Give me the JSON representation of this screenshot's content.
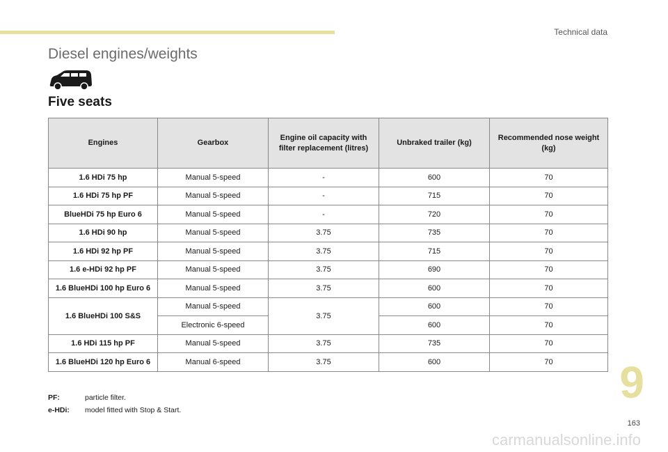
{
  "header": {
    "section_label": "Technical data",
    "accent_color": "#e6df9e"
  },
  "page_title": "Diesel engines/weights",
  "icon": "van-icon",
  "subtitle": "Five seats",
  "table": {
    "columns": [
      "Engines",
      "Gearbox",
      "Engine oil capacity with filter replacement (litres)",
      "Unbraked trailer (kg)",
      "Recommended nose weight (kg)"
    ],
    "rows": [
      [
        "1.6 HDi 75 hp",
        "Manual 5-speed",
        "-",
        "600",
        "70"
      ],
      [
        "1.6 HDi 75 hp PF",
        "Manual 5-speed",
        "-",
        "715",
        "70"
      ],
      [
        "BlueHDi 75 hp Euro 6",
        "Manual 5-speed",
        "-",
        "720",
        "70"
      ],
      [
        "1.6 HDi 90 hp",
        "Manual 5-speed",
        "3.75",
        "735",
        "70"
      ],
      [
        "1.6 HDi 92 hp PF",
        "Manual 5-speed",
        "3.75",
        "715",
        "70"
      ],
      [
        "1.6 e-HDi 92 hp PF",
        "Manual 5-speed",
        "3.75",
        "690",
        "70"
      ],
      [
        "1.6 BlueHDi 100 hp Euro 6",
        "Manual 5-speed",
        "3.75",
        "600",
        "70"
      ],
      [
        "1.6 BlueHDi 100 S&S",
        "Manual 5-speed",
        "3.75",
        "600",
        "70"
      ],
      [
        "",
        "Electronic 6-speed",
        "",
        "600",
        "70"
      ],
      [
        "1.6 HDi 115 hp PF",
        "Manual 5-speed",
        "3.75",
        "735",
        "70"
      ],
      [
        "1.6 BlueHDi 120 hp Euro 6",
        "Manual 6-speed",
        "3.75",
        "600",
        "70"
      ]
    ]
  },
  "footnotes": [
    {
      "key": "PF:",
      "text": "particle filter."
    },
    {
      "key": "e-HDi:",
      "text": "model fitted with Stop & Start."
    }
  ],
  "chapter_number": "9",
  "page_number": "163",
  "watermark": "carmanualsonline.info"
}
